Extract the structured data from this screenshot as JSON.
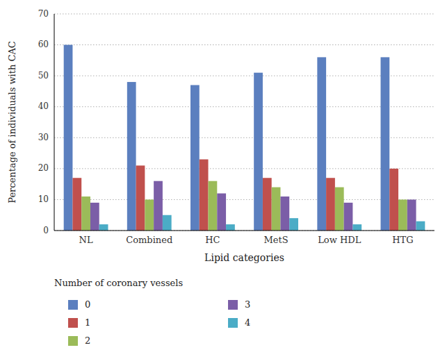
{
  "chart_data": {
    "type": "bar",
    "xlabel": "Lipid categories",
    "ylabel": "Percentage of individuals with CAC",
    "categories": [
      "NL",
      "Combined",
      "HC",
      "MetS",
      "Low HDL",
      "HTG"
    ],
    "series": [
      {
        "name": "0",
        "color": "#5B7FBF",
        "values": [
          60,
          48,
          47,
          51,
          56,
          56
        ]
      },
      {
        "name": "1",
        "color": "#C0504D",
        "values": [
          17,
          21,
          23,
          17,
          17,
          20
        ]
      },
      {
        "name": "2",
        "color": "#9BBB59",
        "values": [
          11,
          10,
          16,
          14,
          14,
          10
        ]
      },
      {
        "name": "3",
        "color": "#7B5EA7",
        "values": [
          9,
          16,
          12,
          11,
          9,
          10
        ]
      },
      {
        "name": "4",
        "color": "#4BACC6",
        "values": [
          2,
          5,
          2,
          4,
          2,
          3
        ]
      }
    ],
    "ylim": [
      0,
      70
    ],
    "yticks": [
      0,
      10,
      20,
      30,
      40,
      50,
      60,
      70
    ],
    "grid": true,
    "legend": "bottom",
    "legend_title": "Number of coronary vessels"
  }
}
